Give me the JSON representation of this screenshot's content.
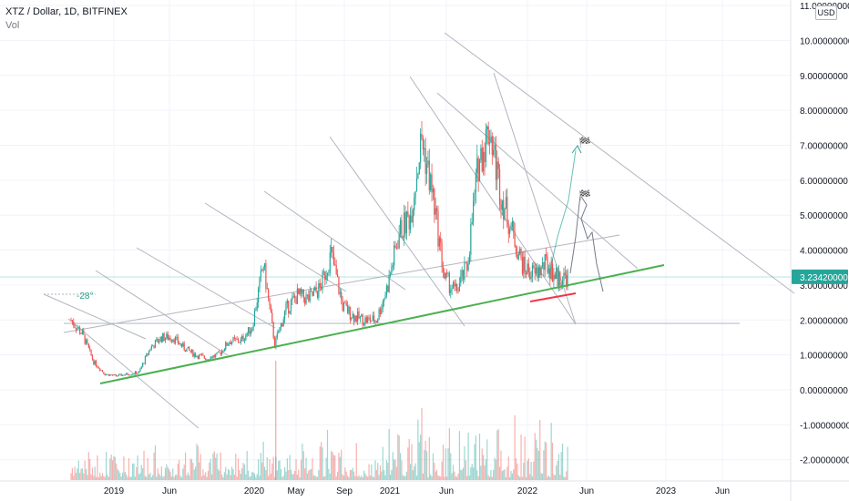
{
  "header": {
    "symbol_line": "XTZ / Dollar, 1D, BITFINEX",
    "volume_label": "Vol"
  },
  "currency": "USD",
  "angle_annotation": "-28°",
  "flag_icon": "checkered-flag-icon",
  "colors": {
    "up": "#26a69a",
    "down": "#ef5350",
    "trendline": "#4caf50",
    "support": "#f23645",
    "channel": "#b2b5be",
    "current_price_bg": "#26a69a"
  },
  "chart_data": {
    "type": "candlestick",
    "symbol": "XTZ / Dollar",
    "interval": "1D",
    "exchange": "BITFINEX",
    "current_price": "3.23420000",
    "ylim": [
      -2.3,
      11.0
    ],
    "y_ticks": [
      {
        "v": 11,
        "label": "11.00000000"
      },
      {
        "v": 10,
        "label": "10.00000000"
      },
      {
        "v": 9,
        "label": "9.00000000"
      },
      {
        "v": 8,
        "label": "8.00000000"
      },
      {
        "v": 7,
        "label": "7.00000000"
      },
      {
        "v": 6,
        "label": "6.00000000"
      },
      {
        "v": 5,
        "label": "5.00000000"
      },
      {
        "v": 4,
        "label": "4.00000000"
      },
      {
        "v": 3,
        "label": "3.00000000"
      },
      {
        "v": 2,
        "label": "2.00000000"
      },
      {
        "v": 1,
        "label": "1.00000000"
      },
      {
        "v": 0,
        "label": "0.00000000"
      },
      {
        "v": -1,
        "label": "-1.00000000"
      },
      {
        "v": -2,
        "label": "-2.00000000"
      }
    ],
    "x_ticks": [
      "2019",
      "Jun",
      "2020",
      "May",
      "Sep",
      "2021",
      "Jun",
      "2022",
      "Jun",
      "2023",
      "Jun"
    ],
    "price_path": [
      [
        "2018-09",
        2.0
      ],
      [
        "2018-10",
        1.6
      ],
      [
        "2018-11",
        0.8
      ],
      [
        "2018-12",
        0.45
      ],
      [
        "2019-01",
        0.4
      ],
      [
        "2019-02",
        0.45
      ],
      [
        "2019-03",
        0.5
      ],
      [
        "2019-04",
        1.2
      ],
      [
        "2019-05",
        1.5
      ],
      [
        "2019-06",
        1.5
      ],
      [
        "2019-07",
        1.2
      ],
      [
        "2019-08",
        1.0
      ],
      [
        "2019-09",
        0.9
      ],
      [
        "2019-10",
        1.0
      ],
      [
        "2019-11",
        1.4
      ],
      [
        "2019-12",
        1.4
      ],
      [
        "2020-01",
        1.8
      ],
      [
        "2020-02",
        3.6
      ],
      [
        "2020-03",
        1.3
      ],
      [
        "2020-04",
        2.3
      ],
      [
        "2020-05",
        2.7
      ],
      [
        "2020-06",
        2.6
      ],
      [
        "2020-07",
        2.9
      ],
      [
        "2020-08",
        3.9
      ],
      [
        "2020-09",
        2.4
      ],
      [
        "2020-10",
        2.1
      ],
      [
        "2020-11",
        2.0
      ],
      [
        "2020-12",
        2.0
      ],
      [
        "2021-01",
        3.0
      ],
      [
        "2021-02",
        4.5
      ],
      [
        "2021-03",
        5.0
      ],
      [
        "2021-04",
        7.2
      ],
      [
        "2021-05",
        5.5
      ],
      [
        "2021-06",
        3.2
      ],
      [
        "2021-07",
        2.8
      ],
      [
        "2021-08",
        3.5
      ],
      [
        "2021-09",
        6.5
      ],
      [
        "2021-10",
        7.5
      ],
      [
        "2021-11",
        5.6
      ],
      [
        "2021-12",
        4.5
      ],
      [
        "2022-01",
        3.5
      ],
      [
        "2022-02",
        3.3
      ],
      [
        "2022-03",
        3.6
      ],
      [
        "2022-04",
        3.2
      ],
      [
        "2022-05",
        3.23
      ]
    ]
  }
}
